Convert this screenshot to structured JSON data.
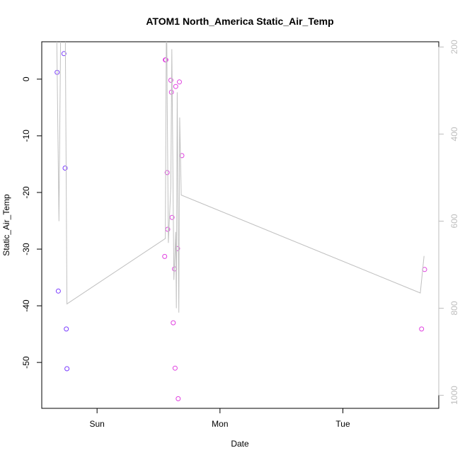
{
  "chart_data": {
    "type": "scatter",
    "title": "ATOM1 North_America Static_Air_Temp",
    "xlabel": "Date",
    "ylabel": "Static_Air_Temp",
    "xlim": [
      -0.45,
      2.78
    ],
    "ylim": [
      -58.1,
      6.6
    ],
    "x_ticks": [
      {
        "value": 0,
        "label": "Sun"
      },
      {
        "value": 1,
        "label": "Mon"
      },
      {
        "value": 2,
        "label": "Tue"
      }
    ],
    "y_ticks": [
      0,
      -10,
      -20,
      -30,
      -40,
      -50
    ],
    "y2_ticks": [
      200,
      400,
      600,
      800,
      1000
    ],
    "y2lim": [
      1030,
      188
    ],
    "grid": false,
    "series": [
      {
        "color": "#7a3cff",
        "points": [
          {
            "x": -0.325,
            "y": 1.2
          },
          {
            "x": -0.27,
            "y": 4.5
          },
          {
            "x": -0.26,
            "y": -15.7
          },
          {
            "x": -0.315,
            "y": -37.4
          },
          {
            "x": -0.25,
            "y": -44.1
          },
          {
            "x": -0.245,
            "y": -51.1
          }
        ]
      },
      {
        "color": "#e040e0",
        "points": [
          {
            "x": 0.555,
            "y": 3.4
          },
          {
            "x": 0.56,
            "y": 3.4
          },
          {
            "x": 0.6,
            "y": -0.2
          },
          {
            "x": 0.64,
            "y": -1.3
          },
          {
            "x": 0.67,
            "y": -0.5
          },
          {
            "x": 0.605,
            "y": -2.3
          },
          {
            "x": 0.57,
            "y": -16.5
          },
          {
            "x": 0.69,
            "y": -13.5
          },
          {
            "x": 0.61,
            "y": -24.4
          },
          {
            "x": 0.575,
            "y": -26.5
          },
          {
            "x": 0.55,
            "y": -31.3
          },
          {
            "x": 0.655,
            "y": -29.9
          },
          {
            "x": 0.63,
            "y": -33.5
          },
          {
            "x": 0.62,
            "y": -43.0
          },
          {
            "x": 0.635,
            "y": -51.0
          },
          {
            "x": 0.66,
            "y": -56.4
          },
          {
            "x": 2.64,
            "y": -44.1
          },
          {
            "x": 2.665,
            "y": -33.6
          }
        ]
      },
      {
        "type": "line",
        "axis": "right",
        "color": "#c0c0c0",
        "points": [
          {
            "x": -0.335,
            "y": -50
          },
          {
            "x": -0.33,
            "y": 120
          },
          {
            "x": -0.31,
            "y": 600
          },
          {
            "x": -0.29,
            "y": -30
          },
          {
            "x": -0.275,
            "y": 110
          },
          {
            "x": -0.26,
            "y": 90
          },
          {
            "x": -0.245,
            "y": 790
          },
          {
            "x": 0.555,
            "y": 640
          },
          {
            "x": 0.565,
            "y": 80
          },
          {
            "x": 0.57,
            "y": 310
          },
          {
            "x": 0.58,
            "y": 650
          },
          {
            "x": 0.6,
            "y": 520
          },
          {
            "x": 0.608,
            "y": 205
          },
          {
            "x": 0.625,
            "y": 735
          },
          {
            "x": 0.64,
            "y": 625
          },
          {
            "x": 0.645,
            "y": 800
          },
          {
            "x": 0.652,
            "y": 304
          },
          {
            "x": 0.665,
            "y": 810
          },
          {
            "x": 0.672,
            "y": 362
          },
          {
            "x": 0.685,
            "y": 540
          },
          {
            "x": 2.63,
            "y": 765
          },
          {
            "x": 2.66,
            "y": 680
          }
        ]
      }
    ]
  }
}
